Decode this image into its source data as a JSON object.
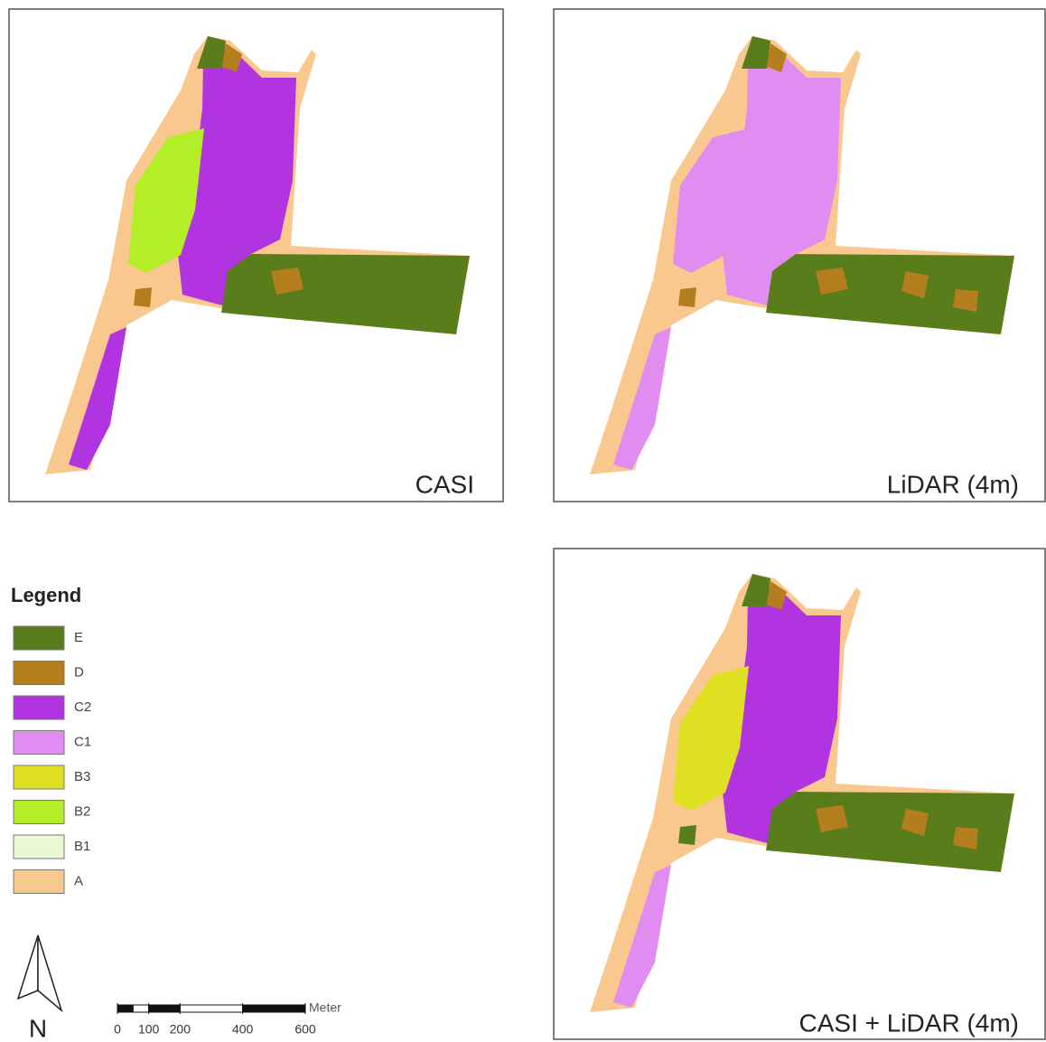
{
  "panels": [
    {
      "label": "CASI"
    },
    {
      "label": "LiDAR (4m)"
    },
    {
      "label": "CASI + LiDAR (4m)"
    }
  ],
  "legend": {
    "title": "Legend",
    "items": [
      {
        "label": "E",
        "color": "#5a7d1c"
      },
      {
        "label": "D",
        "color": "#b47e1e"
      },
      {
        "label": "C2",
        "color": "#b234e0"
      },
      {
        "label": "C1",
        "color": "#e08cf0"
      },
      {
        "label": "B3",
        "color": "#e0e022"
      },
      {
        "label": "B2",
        "color": "#b4ee28"
      },
      {
        "label": "B1",
        "color": "#eaf8d4"
      },
      {
        "label": "A",
        "color": "#f8c88e"
      }
    ]
  },
  "north_arrow": {
    "label": "N"
  },
  "scale_bar": {
    "unit": "Meter",
    "ticks": [
      0,
      100,
      200,
      400,
      600
    ]
  }
}
